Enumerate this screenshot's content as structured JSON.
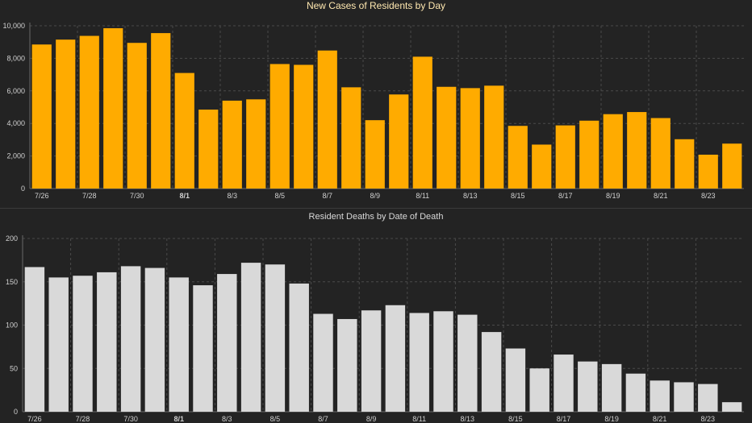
{
  "charts": {
    "cases": {
      "title": "New Cases of Residents by Day",
      "bar_color": "#ffab00",
      "grid_color": "#4a4a4a"
    },
    "deaths": {
      "title": "Resident Deaths by Date of Death",
      "bar_color": "#d9d9d9",
      "grid_color": "#4a4a4a"
    }
  },
  "chart_data": [
    {
      "type": "bar",
      "title": "New Cases of Residents by Day",
      "xlabel": "",
      "ylabel": "",
      "categories": [
        "7/26",
        "7/27",
        "7/28",
        "7/29",
        "7/30",
        "7/31",
        "8/1",
        "8/2",
        "8/3",
        "8/4",
        "8/5",
        "8/6",
        "8/7",
        "8/8",
        "8/9",
        "8/10",
        "8/11",
        "8/12",
        "8/13",
        "8/14",
        "8/15",
        "8/16",
        "8/17",
        "8/18",
        "8/19",
        "8/20",
        "8/21",
        "8/22",
        "8/23",
        "8/24"
      ],
      "values": [
        8850,
        9150,
        9380,
        9850,
        8950,
        9550,
        7100,
        4850,
        5400,
        5480,
        7650,
        7600,
        8480,
        6220,
        4200,
        5780,
        8100,
        6250,
        6170,
        6320,
        3850,
        2700,
        3880,
        4170,
        4570,
        4700,
        4330,
        3030,
        2080,
        2760
      ],
      "ylim": [
        0,
        10000
      ],
      "yticks": [
        0,
        2000,
        4000,
        6000,
        8000,
        10000
      ],
      "ytick_labels": [
        "0",
        "2,000",
        "4,000",
        "6,000",
        "8,000",
        "10,000"
      ],
      "xtick_labels": [
        "7/26",
        "7/28",
        "7/30",
        "8/1",
        "8/3",
        "8/5",
        "8/7",
        "8/9",
        "8/11",
        "8/13",
        "8/15",
        "8/17",
        "8/19",
        "8/21",
        "8/23"
      ],
      "bold_xtick": "8/1",
      "grid": true,
      "legend": "none"
    },
    {
      "type": "bar",
      "title": "Resident Deaths by Date of Death",
      "xlabel": "",
      "ylabel": "",
      "categories": [
        "7/26",
        "7/27",
        "7/28",
        "7/29",
        "7/30",
        "7/31",
        "8/1",
        "8/2",
        "8/3",
        "8/4",
        "8/5",
        "8/6",
        "8/7",
        "8/8",
        "8/9",
        "8/10",
        "8/11",
        "8/12",
        "8/13",
        "8/14",
        "8/15",
        "8/16",
        "8/17",
        "8/18",
        "8/19",
        "8/20",
        "8/21",
        "8/22",
        "8/23",
        "8/24"
      ],
      "values": [
        167,
        155,
        157,
        161,
        168,
        166,
        155,
        146,
        159,
        172,
        170,
        148,
        113,
        107,
        117,
        123,
        114,
        116,
        112,
        92,
        73,
        50,
        66,
        58,
        55,
        44,
        36,
        34,
        32,
        11
      ],
      "ylim": [
        0,
        200
      ],
      "yticks": [
        0,
        50,
        100,
        150,
        200
      ],
      "ytick_labels": [
        "0",
        "50",
        "100",
        "150",
        "200"
      ],
      "xtick_labels": [
        "7/26",
        "7/28",
        "7/30",
        "8/1",
        "8/3",
        "8/5",
        "8/7",
        "8/9",
        "8/11",
        "8/13",
        "8/15",
        "8/17",
        "8/19",
        "8/21",
        "8/23"
      ],
      "bold_xtick": "8/1",
      "grid": true,
      "legend": "none"
    }
  ]
}
